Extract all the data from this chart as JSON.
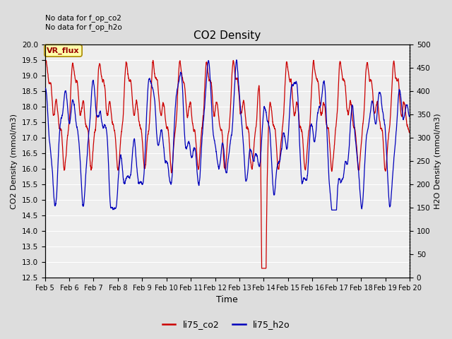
{
  "title": "CO2 Density",
  "xlabel": "Time",
  "ylabel_left": "CO2 Density (mmol/m3)",
  "ylabel_right": "H2O Density (mmol/m3)",
  "ylim_left": [
    12.5,
    20.0
  ],
  "ylim_right": [
    0,
    500
  ],
  "annotation_text": "No data for f_op_co2\nNo data for f_op_h2o",
  "vr_flux_label": "VR_flux",
  "legend_co2": "li75_co2",
  "legend_h2o": "li75_h2o",
  "color_co2": "#cc0000",
  "color_h2o": "#0000bb",
  "plot_bg": "#eeeeee",
  "fig_bg": "#dddddd",
  "grid_color": "#ffffff",
  "xtick_labels": [
    "Feb 5",
    "Feb 6",
    "Feb 7",
    "Feb 8",
    "Feb 9",
    "Feb 10",
    "Feb 11",
    "Feb 12",
    "Feb 13",
    "Feb 14",
    "Feb 15",
    "Feb 16",
    "Feb 17",
    "Feb 18",
    "Feb 19",
    "Feb 20"
  ],
  "n_points": 3000,
  "figsize": [
    6.4,
    4.8
  ],
  "dpi": 100
}
